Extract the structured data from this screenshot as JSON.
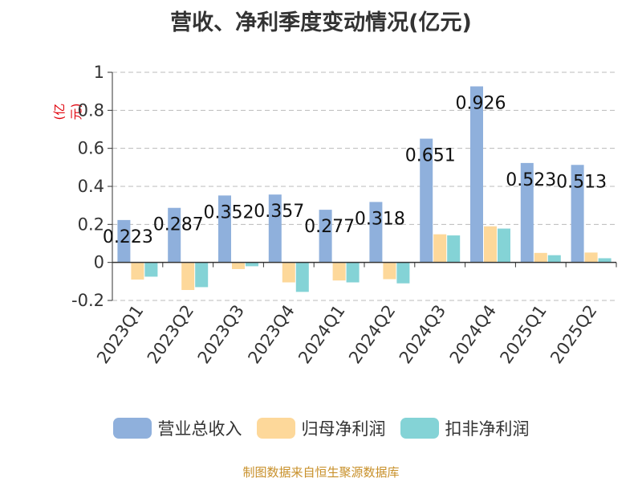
{
  "title": "营收、净利季度变动情况(亿元)",
  "unit_label": "(亿元)",
  "source_note": "制图数据来自恒生聚源数据库",
  "colors": {
    "revenue": "#8fb0dc",
    "net_profit": "#fdd89a",
    "deducted_net_profit": "#84d3d6"
  },
  "chart_data": {
    "type": "bar",
    "title": "营收、净利季度变动情况(亿元)",
    "ylabel": "(亿元)",
    "categories": [
      "2023Q1",
      "2023Q2",
      "2023Q3",
      "2023Q4",
      "2024Q1",
      "2024Q2",
      "2024Q3",
      "2024Q4",
      "2025Q1",
      "2025Q2"
    ],
    "ylim": [
      -0.2,
      1
    ],
    "yticks": [
      -0.2,
      0,
      0.2,
      0.4,
      0.6,
      0.8,
      1
    ],
    "ytick_labels": [
      "-0.2",
      "0",
      "0.2",
      "0.4",
      "0.6",
      "0.8",
      "1"
    ],
    "grid": true,
    "legend_position": "bottom",
    "series": [
      {
        "name": "营业总收入",
        "values": [
          0.223,
          0.287,
          0.352,
          0.357,
          0.277,
          0.318,
          0.651,
          0.926,
          0.523,
          0.513
        ],
        "labels": [
          "0.223",
          "0.287",
          "0.352",
          "0.357",
          "0.277",
          "0.318",
          "0.651",
          "0.926",
          "0.523",
          "0.513"
        ]
      },
      {
        "name": "归母净利润",
        "values": [
          -0.09,
          -0.145,
          -0.035,
          -0.105,
          -0.095,
          -0.088,
          0.148,
          0.19,
          0.05,
          0.052
        ]
      },
      {
        "name": "扣非净利润",
        "values": [
          -0.075,
          -0.13,
          -0.02,
          -0.155,
          -0.105,
          -0.11,
          0.142,
          0.178,
          0.038,
          0.022
        ]
      }
    ]
  }
}
